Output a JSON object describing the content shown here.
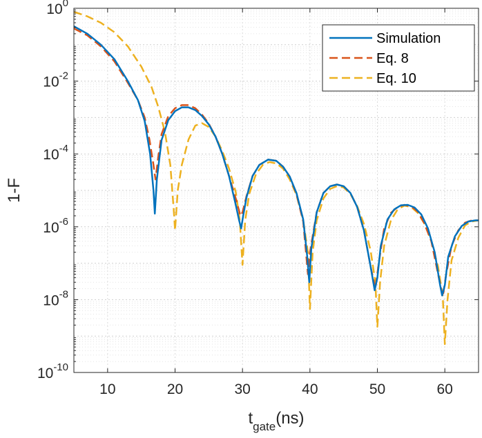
{
  "chart_data": {
    "type": "line",
    "title": "",
    "xlabel": {
      "main": "t",
      "sub": "gate",
      "rest": "(ns)"
    },
    "ylabel": "1-F",
    "xlim": [
      5,
      65
    ],
    "ylim_log10": [
      -10,
      0
    ],
    "yscale": "log",
    "grid": true,
    "legend_position": "top-right",
    "x_ticks": [
      10,
      20,
      30,
      40,
      50,
      60
    ],
    "x_tick_labels": [
      "10",
      "20",
      "30",
      "40",
      "50",
      "60"
    ],
    "y_ticks_exp": [
      -10,
      -8,
      -6,
      -4,
      -2,
      0
    ],
    "y_tick_labels": [
      {
        "base": "10",
        "exp": "-10"
      },
      {
        "base": "10",
        "exp": "-8"
      },
      {
        "base": "10",
        "exp": "-6"
      },
      {
        "base": "10",
        "exp": "-4"
      },
      {
        "base": "10",
        "exp": "-2"
      },
      {
        "base": "10",
        "exp": "0"
      }
    ],
    "series": [
      {
        "name": "Simulation",
        "color": "#0072BD",
        "style": "solid",
        "points": [
          [
            5,
            0.32
          ],
          [
            7,
            0.2
          ],
          [
            9,
            0.1
          ],
          [
            11,
            0.04
          ],
          [
            13,
            0.01
          ],
          [
            14.5,
            0.003
          ],
          [
            15.5,
            0.0008
          ],
          [
            16.3,
            0.0001
          ],
          [
            16.8,
            1e-05
          ],
          [
            17,
            2.3e-06
          ],
          [
            17.3,
            2e-05
          ],
          [
            18,
            0.00024
          ],
          [
            19,
            0.00085
          ],
          [
            20,
            0.0015
          ],
          [
            21,
            0.0019
          ],
          [
            22,
            0.0019
          ],
          [
            23,
            0.0016
          ],
          [
            24,
            0.0011
          ],
          [
            25,
            0.00065
          ],
          [
            26,
            0.0003
          ],
          [
            27,
            0.0001
          ],
          [
            28,
            2.5e-05
          ],
          [
            29,
            4e-06
          ],
          [
            29.5,
            1.5e-06
          ],
          [
            29.8,
            9e-07
          ],
          [
            30.1,
            2e-06
          ],
          [
            30.6,
            6.5e-06
          ],
          [
            31.5,
            2.5e-05
          ],
          [
            32.5,
            5e-05
          ],
          [
            33.8,
            7e-05
          ],
          [
            35,
            6.5e-05
          ],
          [
            36,
            4.5e-05
          ],
          [
            37,
            2.4e-05
          ],
          [
            38,
            8.5e-06
          ],
          [
            39,
            1.6e-06
          ],
          [
            39.6,
            1.5e-07
          ],
          [
            39.9,
            3e-08
          ],
          [
            40.2,
            2.5e-07
          ],
          [
            41,
            2.5e-06
          ],
          [
            42,
            8.5e-06
          ],
          [
            43,
            1.3e-05
          ],
          [
            44,
            1.45e-05
          ],
          [
            45,
            1.3e-05
          ],
          [
            46,
            8.5e-06
          ],
          [
            47,
            3.5e-06
          ],
          [
            48,
            8e-07
          ],
          [
            49,
            8e-08
          ],
          [
            49.6,
            1.8e-08
          ],
          [
            50,
            4e-08
          ],
          [
            50.5,
            3e-07
          ],
          [
            51.5,
            1.6e-06
          ],
          [
            52.5,
            3e-06
          ],
          [
            53.5,
            3.9e-06
          ],
          [
            54.5,
            4e-06
          ],
          [
            55.5,
            3.4e-06
          ],
          [
            56.5,
            2.2e-06
          ],
          [
            57.5,
            9e-07
          ],
          [
            58.5,
            2e-07
          ],
          [
            59.3,
            2.5e-08
          ],
          [
            59.6,
            1.3e-08
          ],
          [
            60,
            2.5e-08
          ],
          [
            60.5,
            1.5e-07
          ],
          [
            61.5,
            5.5e-07
          ],
          [
            62.5,
            1.05e-06
          ],
          [
            63.5,
            1.4e-06
          ],
          [
            64.5,
            1.5e-06
          ],
          [
            65,
            1.5e-06
          ]
        ]
      },
      {
        "name": "Eq. 8",
        "color": "#D95319",
        "style": "dashed",
        "points": [
          [
            5,
            0.28
          ],
          [
            7,
            0.18
          ],
          [
            9,
            0.09
          ],
          [
            11,
            0.035
          ],
          [
            13,
            0.009
          ],
          [
            14.5,
            0.003
          ],
          [
            15.5,
            0.001
          ],
          [
            16.2,
            0.00025
          ],
          [
            16.8,
            5e-05
          ],
          [
            17.1,
            2e-05
          ],
          [
            17.5,
            8e-05
          ],
          [
            18,
            0.00035
          ],
          [
            19,
            0.0011
          ],
          [
            20,
            0.0018
          ],
          [
            21,
            0.0022
          ],
          [
            22,
            0.0022
          ],
          [
            23,
            0.0018
          ],
          [
            24,
            0.0012
          ],
          [
            25,
            0.00068
          ],
          [
            26,
            0.0003
          ],
          [
            27,
            0.0001
          ],
          [
            28,
            2.5e-05
          ],
          [
            29,
            6e-06
          ],
          [
            29.7,
            2e-06
          ],
          [
            30,
            2.5e-06
          ],
          [
            30.6,
            7e-06
          ],
          [
            31.5,
            2.5e-05
          ],
          [
            32.5,
            5e-05
          ],
          [
            33.8,
            7e-05
          ],
          [
            35,
            6.5e-05
          ],
          [
            36,
            4.5e-05
          ],
          [
            37,
            2.4e-05
          ],
          [
            38,
            8e-06
          ],
          [
            39,
            1.4e-06
          ],
          [
            39.7,
            5e-08
          ],
          [
            40,
            2e-07
          ],
          [
            41,
            2.5e-06
          ],
          [
            42,
            8.5e-06
          ],
          [
            43,
            1.3e-05
          ],
          [
            44,
            1.45e-05
          ],
          [
            45,
            1.3e-05
          ],
          [
            46,
            8.5e-06
          ],
          [
            47,
            3.5e-06
          ],
          [
            48,
            8e-07
          ],
          [
            49,
            8e-08
          ],
          [
            49.7,
            2e-08
          ],
          [
            50.2,
            1e-07
          ],
          [
            51,
            9e-07
          ],
          [
            52,
            2.4e-06
          ],
          [
            53,
            3.5e-06
          ],
          [
            54,
            4e-06
          ],
          [
            55,
            3.7e-06
          ],
          [
            56,
            2.6e-06
          ],
          [
            57,
            1.2e-06
          ],
          [
            58,
            4e-07
          ],
          [
            59,
            5e-08
          ],
          [
            59.7,
            1.2e-08
          ],
          [
            60.2,
            5e-08
          ],
          [
            61,
            3e-07
          ],
          [
            62,
            8e-07
          ],
          [
            63,
            1.3e-06
          ],
          [
            64,
            1.5e-06
          ],
          [
            65,
            1.5e-06
          ]
        ]
      },
      {
        "name": "Eq. 10",
        "color": "#EDB120",
        "style": "dashed",
        "points": [
          [
            5,
            0.8
          ],
          [
            7,
            0.6
          ],
          [
            9,
            0.4
          ],
          [
            11,
            0.22
          ],
          [
            13,
            0.09
          ],
          [
            15,
            0.025
          ],
          [
            16.5,
            0.007
          ],
          [
            17.5,
            0.002
          ],
          [
            18.5,
            0.0004
          ],
          [
            19.3,
            5e-05
          ],
          [
            19.8,
            3e-06
          ],
          [
            20,
            8e-07
          ],
          [
            20.4,
            1e-05
          ],
          [
            21,
            5e-05
          ],
          [
            22,
            0.00025
          ],
          [
            23,
            0.0006
          ],
          [
            24,
            0.0007
          ],
          [
            25,
            0.00055
          ],
          [
            26,
            0.0003
          ],
          [
            27,
            0.00012
          ],
          [
            28,
            4e-05
          ],
          [
            29,
            9e-06
          ],
          [
            29.6,
            1.5e-06
          ],
          [
            30,
            9e-08
          ],
          [
            30.4,
            1.5e-06
          ],
          [
            31,
            8e-06
          ],
          [
            32,
            2.8e-05
          ],
          [
            33,
            5e-05
          ],
          [
            34,
            6e-05
          ],
          [
            35,
            5.5e-05
          ],
          [
            36,
            4e-05
          ],
          [
            37,
            2e-05
          ],
          [
            38,
            7.5e-06
          ],
          [
            39,
            1.5e-06
          ],
          [
            39.7,
            2e-07
          ],
          [
            40,
            5.5e-09
          ],
          [
            40.4,
            2e-07
          ],
          [
            41,
            1.5e-06
          ],
          [
            42,
            6e-06
          ],
          [
            43,
            1.1e-05
          ],
          [
            44,
            1.3e-05
          ],
          [
            45,
            1.2e-05
          ],
          [
            46,
            8e-06
          ],
          [
            47,
            3.7e-06
          ],
          [
            48,
            1.2e-06
          ],
          [
            49,
            2.2e-07
          ],
          [
            49.7,
            3e-08
          ],
          [
            50,
            1.8e-09
          ],
          [
            50.4,
            3e-08
          ],
          [
            51,
            3e-07
          ],
          [
            52,
            1.5e-06
          ],
          [
            53,
            3e-06
          ],
          [
            54,
            3.8e-06
          ],
          [
            55,
            3.5e-06
          ],
          [
            56,
            2.4e-06
          ],
          [
            57,
            1.2e-06
          ],
          [
            58,
            4e-07
          ],
          [
            59,
            8e-08
          ],
          [
            59.7,
            1.2e-08
          ],
          [
            60,
            6e-10
          ],
          [
            60.4,
            1e-08
          ],
          [
            61,
            1.2e-07
          ],
          [
            62,
            5e-07
          ],
          [
            63,
            1.1e-06
          ],
          [
            64,
            1.4e-06
          ],
          [
            65,
            1.5e-06
          ]
        ]
      }
    ]
  }
}
